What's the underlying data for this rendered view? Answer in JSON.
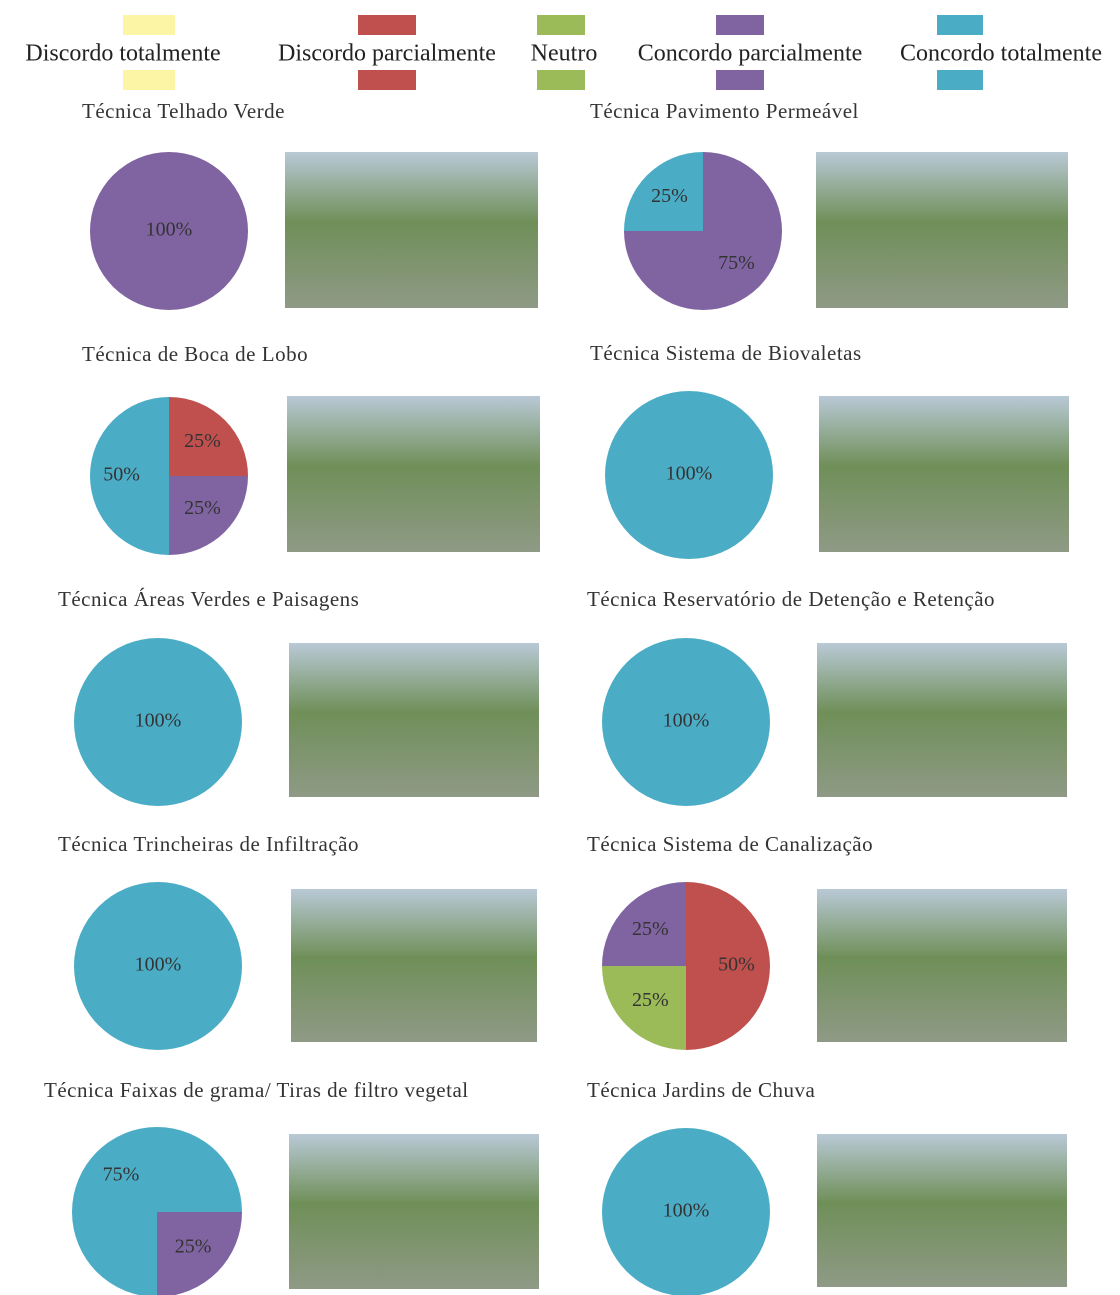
{
  "legend": {
    "series": [
      {
        "name": "Discordo totalmente",
        "color": "#fdf5a6"
      },
      {
        "name": "Discordo parcialmente",
        "color": "#c0504d"
      },
      {
        "name": "Neutro",
        "color": "#9bbb59"
      },
      {
        "name": "Concordo parcialmente",
        "color": "#8064a2"
      },
      {
        "name": "Concordo totalmente",
        "color": "#4bacc6"
      }
    ]
  },
  "chart_data": [
    {
      "type": "pie",
      "title": "Técnica Telhado Verde",
      "start_angle": 0,
      "values": [
        0,
        0,
        0,
        100,
        0
      ],
      "value_labels": [
        null,
        null,
        null,
        "100%",
        null
      ]
    },
    {
      "type": "pie",
      "title": "Técnica Pavimento Permeável",
      "start_angle": 0,
      "values": [
        0,
        0,
        0,
        75,
        25
      ],
      "value_labels": [
        null,
        null,
        null,
        "75%",
        "25%"
      ]
    },
    {
      "type": "pie",
      "title": "Técnica de Boca de Lobo",
      "start_angle": 0,
      "values": [
        0,
        25,
        0,
        25,
        50
      ],
      "value_labels": [
        null,
        "25%",
        null,
        "25%",
        "50%"
      ]
    },
    {
      "type": "pie",
      "title": "Técnica Sistema de Biovaletas",
      "start_angle": 0,
      "values": [
        0,
        0,
        0,
        0,
        100
      ],
      "value_labels": [
        null,
        null,
        null,
        null,
        "100%"
      ]
    },
    {
      "type": "pie",
      "title": "Técnica Áreas Verdes e Paisagens",
      "start_angle": 0,
      "values": [
        0,
        0,
        0,
        0,
        100
      ],
      "value_labels": [
        null,
        null,
        null,
        null,
        "100%"
      ]
    },
    {
      "type": "pie",
      "title": "Técnica Reservatório de Detenção e Retenção",
      "start_angle": 0,
      "values": [
        0,
        0,
        0,
        0,
        100
      ],
      "value_labels": [
        null,
        null,
        null,
        null,
        "100%"
      ]
    },
    {
      "type": "pie",
      "title": "Técnica Trincheiras de Infiltração",
      "start_angle": 0,
      "values": [
        0,
        0,
        0,
        0,
        100
      ],
      "value_labels": [
        null,
        null,
        null,
        null,
        "100%"
      ]
    },
    {
      "type": "pie",
      "title": "Técnica Sistema de Canalização",
      "start_angle": 0,
      "values": [
        0,
        50,
        25,
        25,
        0
      ],
      "value_labels": [
        null,
        "50%",
        "25%",
        "25%",
        null
      ]
    },
    {
      "type": "pie",
      "title": "Técnica Faixas de grama/ Tiras de filtro vegetal",
      "start_angle": 90,
      "values": [
        0,
        0,
        0,
        25,
        75
      ],
      "value_labels": [
        null,
        null,
        null,
        "25%",
        "75%"
      ]
    },
    {
      "type": "pie",
      "title": "Técnica Jardins de Chuva",
      "start_angle": 0,
      "values": [
        0,
        0,
        0,
        0,
        100
      ],
      "value_labels": [
        null,
        null,
        null,
        null,
        "100%"
      ]
    }
  ]
}
